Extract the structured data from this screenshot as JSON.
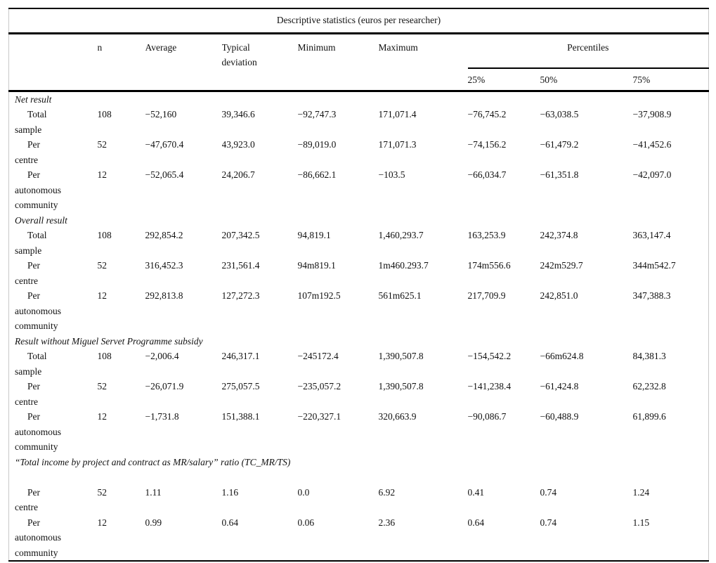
{
  "colors": {
    "background": "#ffffff",
    "text": "#111111",
    "rule": "#000000",
    "frame": "#c9c9c9"
  },
  "table": {
    "title": "Descriptive statistics (euros per researcher)",
    "header": {
      "row_label": "",
      "n": "n",
      "average": "Average",
      "typical_deviation": "Typical\ndeviation",
      "minimum": "Minimum",
      "maximum": "Maximum",
      "percentiles": "Percentiles",
      "p25": "25%",
      "p50": "50%",
      "p75": "75%"
    },
    "sections": [
      {
        "label": "Net result",
        "rows": [
          {
            "label": "Total\nsample",
            "cells": [
              "108",
              "−52,160",
              "39,346.6",
              "−92,747.3",
              "171,071.4",
              "−76,745.2",
              "−63,038.5",
              "−37,908.9"
            ]
          },
          {
            "label": "Per\ncentre",
            "cells": [
              "52",
              "−47,670.4",
              "43,923.0",
              "−89,019.0",
              "171,071.3",
              "−74,156.2",
              "−61,479.2",
              "−41,452.6"
            ]
          },
          {
            "label": "Per\nautonomous\ncommunity",
            "cells": [
              "12",
              "−52,065.4",
              "24,206.7",
              "−86,662.1",
              "−103.5",
              "−66,034.7",
              "−61,351.8",
              "−42,097.0"
            ]
          }
        ]
      },
      {
        "label": "Overall result",
        "rows": [
          {
            "label": "Total\nsample",
            "cells": [
              "108",
              "292,854.2",
              "207,342.5",
              "94,819.1",
              "1,460,293.7",
              "163,253.9",
              "242,374.8",
              "363,147.4"
            ]
          },
          {
            "label": "Per\ncentre",
            "cells": [
              "52",
              "316,452.3",
              "231,561.4",
              "94m819.1",
              "1m460.293.7",
              "174m556.6",
              "242m529.7",
              "344m542.7"
            ]
          },
          {
            "label": "Per\nautonomous\ncommunity",
            "cells": [
              "12",
              "292,813.8",
              "127,272.3",
              "107m192.5",
              "561m625.1",
              "217,709.9",
              "242,851.0",
              "347,388.3"
            ]
          }
        ]
      },
      {
        "label": "Result without Miguel Servet Programme subsidy",
        "rows": [
          {
            "label": "Total\nsample",
            "cells": [
              "108",
              "−2,006.4",
              "246,317.1",
              "−245172.4",
              "1,390,507.8",
              "−154,542.2",
              "−66m624.8",
              "84,381.3"
            ]
          },
          {
            "label": "Per\ncentre",
            "cells": [
              "52",
              "−26,071.9",
              "275,057.5",
              "−235,057.2",
              "1,390,507.8",
              "−141,238.4",
              "−61,424.8",
              "62,232.8"
            ]
          },
          {
            "label": "Per\nautonomous\ncommunity",
            "cells": [
              "12",
              "−1,731.8",
              "151,388.1",
              "−220,327.1",
              "320,663.9",
              "−90,086.7",
              "−60,488.9",
              "61,899.6"
            ]
          }
        ]
      },
      {
        "label": "“Total income by project and contract as MR/salary” ratio (TC_MR/TS)",
        "spacer_after_label": true,
        "rows": [
          {
            "label": "Per\ncentre",
            "cells": [
              "52",
              "1.11",
              "1.16",
              "0.0",
              "6.92",
              "0.41",
              "0.74",
              "1.24"
            ]
          },
          {
            "label": "Per\nautonomous\ncommunity",
            "cells": [
              "12",
              "0.99",
              "0.64",
              "0.06",
              "2.36",
              "0.64",
              "0.74",
              "1.15"
            ]
          }
        ]
      }
    ]
  }
}
